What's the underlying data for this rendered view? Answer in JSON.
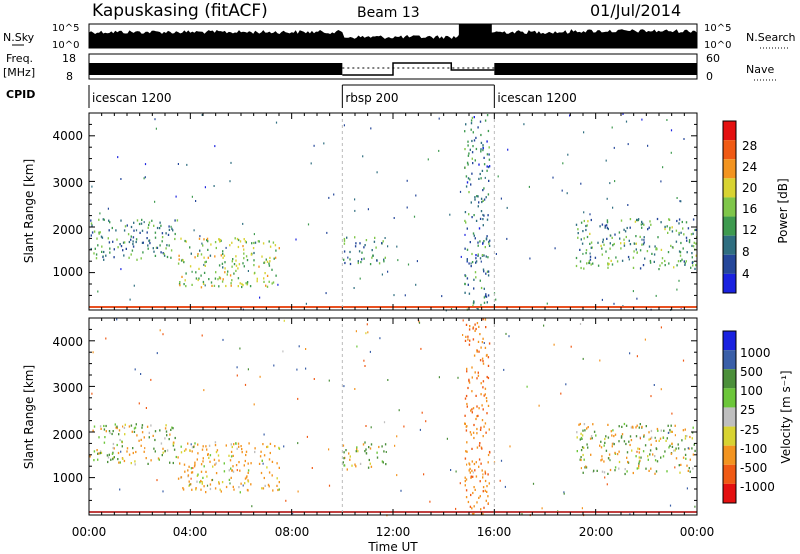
{
  "header": {
    "station": "Kapuskasing (fitACF)",
    "beam": "Beam 13",
    "date": "01/Jul/2014"
  },
  "noise_panel": {
    "left_label": "N.Sky",
    "right_label": "N.Search",
    "left_ticks": [
      "10^5",
      "10^0"
    ],
    "right_ticks": [
      "10^5",
      "10^0"
    ]
  },
  "freq_panel": {
    "left_label_1": "Freq.",
    "left_label_2": "[MHz]",
    "left_ticks": [
      "18",
      "8"
    ],
    "right_label": "Nave",
    "right_ticks": [
      "60",
      "0"
    ]
  },
  "cpid": {
    "label": "CPID",
    "segments": [
      {
        "name": "icescan 1200",
        "start_hour": 0,
        "end_hour": 10.0
      },
      {
        "name": "rbsp 200",
        "start_hour": 10.0,
        "end_hour": 16.0
      },
      {
        "name": "icescan 1200",
        "start_hour": 16.0,
        "end_hour": 24.0
      }
    ]
  },
  "power_panel": {
    "ylabel": "Slant Range [km]",
    "yticks": [
      "4000",
      "3000",
      "2000",
      "1000"
    ],
    "colorbar_label": "Power [dB]",
    "colorbar_ticks": [
      "28",
      "24",
      "20",
      "16",
      "12",
      "8",
      "4"
    ]
  },
  "velocity_panel": {
    "ylabel": "Slant Range [km]",
    "yticks": [
      "4000",
      "3000",
      "2000",
      "1000"
    ],
    "colorbar_label": "Velocity [m s⁻¹]",
    "colorbar_ticks": [
      "1000",
      "500",
      "100",
      "25",
      "-25",
      "-100",
      "-500",
      "-1000"
    ]
  },
  "xaxis": {
    "label": "Time UT",
    "ticks": [
      "00:00",
      "04:00",
      "08:00",
      "12:00",
      "16:00",
      "20:00",
      "00:00"
    ]
  },
  "chart_data": {
    "type": "heatmap",
    "title": "Kapuskasing (fitACF) Beam 13 01/Jul/2014",
    "xlabel": "Time UT",
    "ylabel": "Slant Range [km]",
    "xlim_hours": [
      0,
      24
    ],
    "ylim_km": [
      180,
      4500
    ],
    "power_colorbar": {
      "min_db": 0,
      "max_db": 30,
      "colors": [
        "#1a22e0",
        "#25479a",
        "#2f6e80",
        "#3e9a4f",
        "#7fc64a",
        "#d8d332",
        "#f39420",
        "#f05a14",
        "#e41010"
      ]
    },
    "velocity_colorbar": {
      "levels": [
        1000,
        500,
        100,
        25,
        -25,
        -100,
        -500,
        -1000
      ],
      "colors": [
        "#1a22e0",
        "#3a5fa8",
        "#4b8f3a",
        "#6cc63a",
        "#bfbfbf",
        "#d8d332",
        "#f39420",
        "#f05a14",
        "#e41010"
      ]
    },
    "scatter_regions": [
      {
        "t0": 0.0,
        "t1": 3.5,
        "r0": 1300,
        "r1": 2200,
        "power_db": 9,
        "velocity": 25
      },
      {
        "t0": 3.5,
        "t1": 7.5,
        "r0": 700,
        "r1": 1800,
        "power_db": 16,
        "velocity": -200
      },
      {
        "t0": 10.0,
        "t1": 11.7,
        "r0": 1200,
        "r1": 1800,
        "power_db": 10,
        "velocity": 15
      },
      {
        "t0": 14.8,
        "t1": 15.8,
        "r0": 200,
        "r1": 4500,
        "power_db": 8,
        "velocity": -400
      },
      {
        "t0": 19.2,
        "t1": 24.0,
        "r0": 1100,
        "r1": 2200,
        "power_db": 11,
        "velocity": 20
      }
    ]
  }
}
